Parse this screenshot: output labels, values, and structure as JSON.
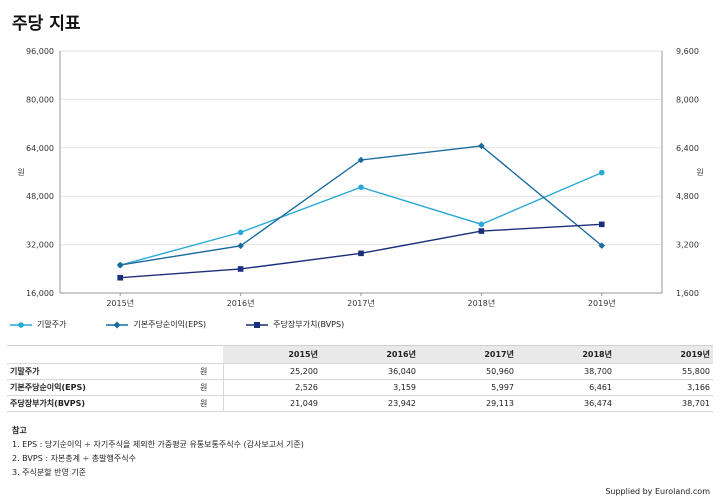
{
  "title": "주당 지표",
  "chart_data": {
    "type": "line",
    "categories": [
      "2015년",
      "2016년",
      "2017년",
      "2018년",
      "2019년"
    ],
    "left_axis": {
      "label": "원",
      "ticks": [
        "16,000",
        "32,000",
        "48,000",
        "64,000",
        "80,000",
        "96,000"
      ],
      "range": [
        16000,
        96000
      ]
    },
    "right_axis": {
      "label": "원",
      "ticks": [
        "1,600",
        "3,200",
        "4,800",
        "6,400",
        "8,000",
        "9,600"
      ],
      "range": [
        1600,
        9600
      ]
    },
    "series": [
      {
        "name": "기말주가",
        "axis": "left",
        "marker": "circle",
        "color": "#29a9d6",
        "values": [
          25200,
          36040,
          50960,
          38700,
          55800
        ]
      },
      {
        "name": "기본주당순이익(EPS)",
        "axis": "right",
        "marker": "diamond",
        "color": "#1a6a9e",
        "values": [
          2526,
          3159,
          5997,
          6461,
          3166
        ]
      },
      {
        "name": "주당장부가치(BVPS)",
        "axis": "left",
        "marker": "square",
        "color": "#1c2f7a",
        "values": [
          21049,
          23942,
          29113,
          36474,
          38701
        ]
      }
    ],
    "legend_position": "bottom-left",
    "grid": "horizontal"
  },
  "table": {
    "headers": [
      "2015년",
      "2016년",
      "2017년",
      "2018년",
      "2019년"
    ],
    "rows": [
      {
        "label": "기말주가",
        "unit": "원",
        "values": [
          "25,200",
          "36,040",
          "50,960",
          "38,700",
          "55,800"
        ]
      },
      {
        "label": "기본주당순이익(EPS)",
        "unit": "원",
        "values": [
          "2,526",
          "3,159",
          "5,997",
          "6,461",
          "3,166"
        ]
      },
      {
        "label": "주당장부가치(BVPS)",
        "unit": "원",
        "values": [
          "21,049",
          "23,942",
          "29,113",
          "36,474",
          "38,701"
        ]
      }
    ]
  },
  "notes": {
    "title": "참고",
    "items": [
      "1. EPS : 당기순이익 ÷ 자기주식을 제외한 가중평균 유통보통주식수 (감사보고서 기준)",
      "2. BVPS : 자본총계 ÷ 총발행주식수",
      "3. 주식분할 반영 기준"
    ]
  },
  "supplied_by": "Supplied by Euroland.com"
}
